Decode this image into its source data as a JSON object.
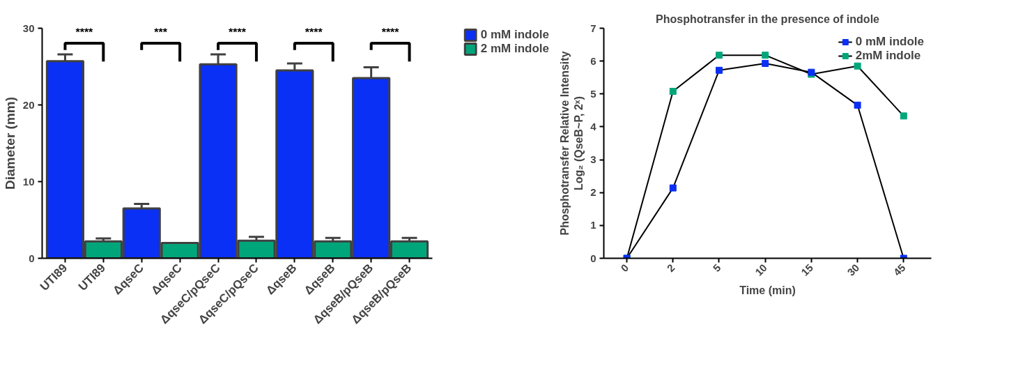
{
  "chart_data": [
    {
      "type": "bar",
      "ylabel": "Diameter (mm)",
      "categories": [
        "UTI89",
        "UTI89",
        "ΔqseC",
        "ΔqseC",
        "ΔqseC/pQseC",
        "ΔqseC/pQseC",
        "ΔqseB",
        "ΔqseB",
        "ΔqseB/pQseB",
        "ΔqseB/pQseB"
      ],
      "series": [
        {
          "name": "0 mM indole",
          "color": "#0a2ff5",
          "values": [
            25.7,
            null,
            6.5,
            null,
            25.3,
            null,
            24.5,
            null,
            23.5,
            null
          ],
          "errors": [
            [
              25.7,
              26.6
            ],
            null,
            [
              6.5,
              7.1
            ],
            null,
            [
              25.3,
              26.6
            ],
            null,
            [
              24.5,
              25.4
            ],
            null,
            [
              23.5,
              24.9
            ],
            null
          ]
        },
        {
          "name": "2 mM indole",
          "color": "#00a67a",
          "values": [
            null,
            2.2,
            null,
            2.0,
            null,
            2.3,
            null,
            2.2,
            null,
            2.2
          ],
          "errors": [
            null,
            [
              2.2,
              2.6
            ],
            null,
            null,
            null,
            [
              2.3,
              2.8
            ],
            null,
            [
              2.2,
              2.65
            ],
            null,
            [
              2.2,
              2.65
            ]
          ]
        }
      ],
      "annotations": [
        "****",
        "***",
        "****",
        "****",
        "****"
      ],
      "ylim": [
        0,
        30
      ],
      "yticks": [
        0,
        10,
        20,
        30
      ],
      "grid": false,
      "legend": "top right"
    },
    {
      "type": "line",
      "title": "Phosphotransfer in the presence of indole",
      "xlabel": "Time (min)",
      "ylabel": "Phosphotransfer Relative Intensity\nLog₂ (QseB~P, 2ˣ)",
      "categories": [
        "0",
        "2",
        "5",
        "10",
        "15",
        "30",
        "45"
      ],
      "series": [
        {
          "name": "0 mM indole",
          "color": "#0a2ff5",
          "values": [
            0,
            2.14,
            5.72,
            5.93,
            5.66,
            4.66,
            0
          ]
        },
        {
          "name": "2mM indole",
          "color": "#00a67a",
          "values": [
            0,
            5.08,
            6.18,
            6.18,
            5.6,
            5.85,
            4.33
          ]
        }
      ],
      "ylim": [
        0,
        7
      ],
      "yticks": [
        0,
        1,
        2,
        3,
        4,
        5,
        6,
        7
      ],
      "grid": false,
      "legend": "top right",
      "marker": "square"
    }
  ]
}
